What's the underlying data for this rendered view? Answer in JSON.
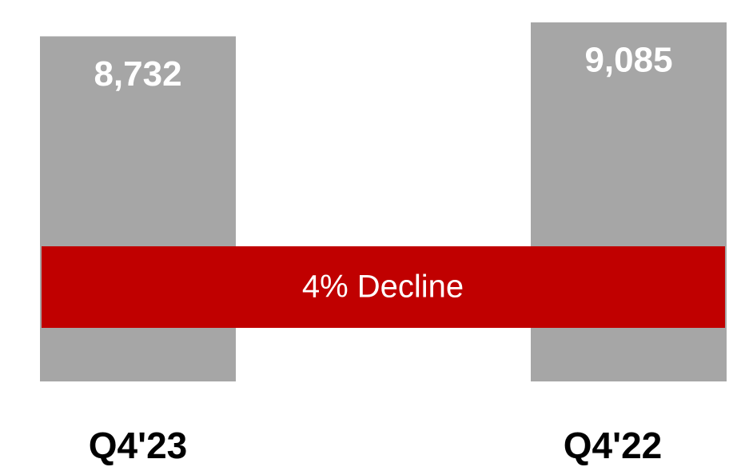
{
  "chart_data": {
    "type": "bar",
    "categories": [
      "Q4'23",
      "Q4'22"
    ],
    "values": [
      8732,
      9085
    ],
    "value_labels": [
      "8,732",
      "9,085"
    ],
    "color": "#a6a6a6",
    "annotation": "4% Decline"
  }
}
